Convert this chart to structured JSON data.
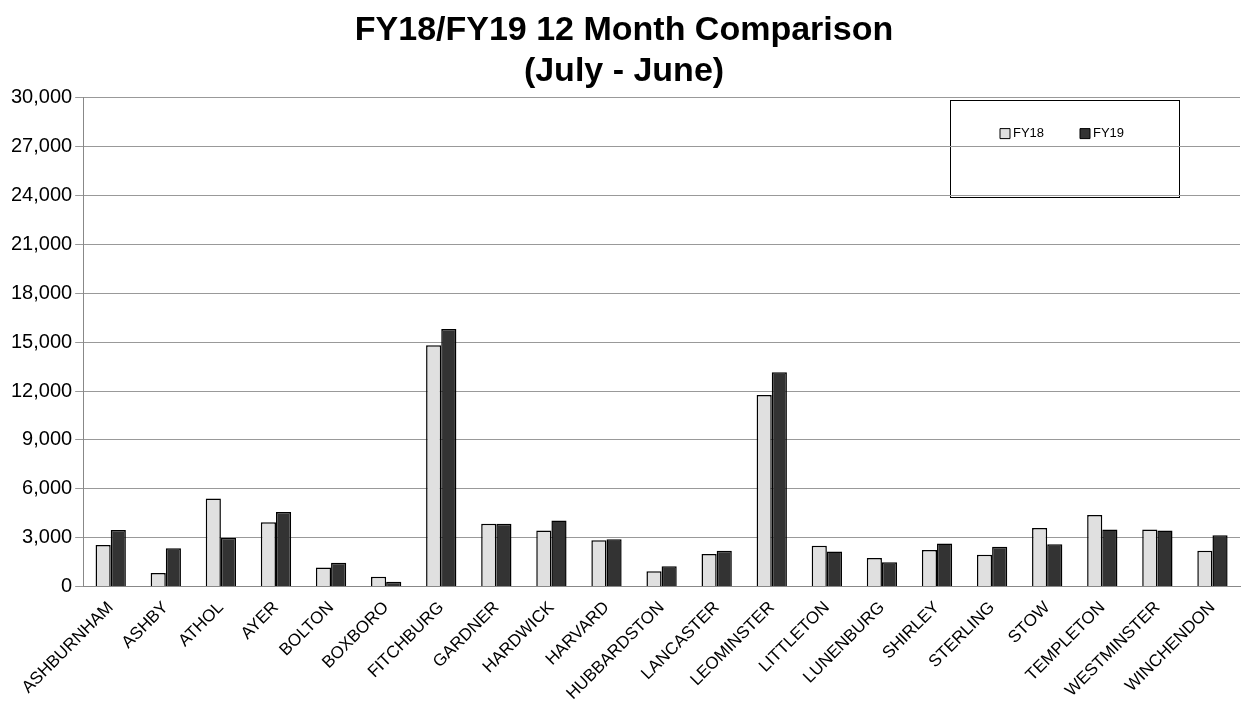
{
  "chart_data": {
    "type": "bar",
    "title": "FY18/FY19 12 Month Comparison",
    "subtitle": "(July - June)",
    "categories": [
      "ASHBURNHAM",
      "ASHBY",
      "ATHOL",
      "AYER",
      "BOLTON",
      "BOXBORO",
      "FITCHBURG",
      "GARDNER",
      "HARDWICK",
      "HARVARD",
      "HUBBARDSTON",
      "LANCASTER",
      "LEOMINSTER",
      "LITTLETON",
      "LUNENBURG",
      "SHIRLEY",
      "STERLING",
      "STOW",
      "TEMPLETON",
      "WESTMINSTER",
      "WINCHENDON"
    ],
    "series": [
      {
        "name": "FY18",
        "color": "#e0e0e0",
        "values": [
          2550,
          830,
          5400,
          3950,
          1180,
          600,
          14800,
          3850,
          3450,
          2850,
          950,
          2000,
          11750,
          2500,
          1750,
          2250,
          1950,
          3600,
          4400,
          3500,
          2200
        ]
      },
      {
        "name": "FY19",
        "color": "#333333",
        "values": [
          3470,
          2360,
          3000,
          4580,
          1460,
          300,
          15800,
          3850,
          4050,
          2900,
          1250,
          2200,
          13150,
          2150,
          1500,
          2650,
          2450,
          2600,
          3500,
          3450,
          3150
        ]
      }
    ],
    "ylim": [
      0,
      30000
    ],
    "yticks": [
      {
        "value": 0,
        "label": "0"
      },
      {
        "value": 3000,
        "label": "3,000"
      },
      {
        "value": 6000,
        "label": "6,000"
      },
      {
        "value": 9000,
        "label": "9,000"
      },
      {
        "value": 12000,
        "label": "12,000"
      },
      {
        "value": 15000,
        "label": "15,000"
      },
      {
        "value": 18000,
        "label": "18,000"
      },
      {
        "value": 21000,
        "label": "21,000"
      },
      {
        "value": 24000,
        "label": "24,000"
      },
      {
        "value": 27000,
        "label": "27,000"
      },
      {
        "value": 30000,
        "label": "30,000"
      }
    ],
    "grid": "y",
    "legend": "top right"
  }
}
